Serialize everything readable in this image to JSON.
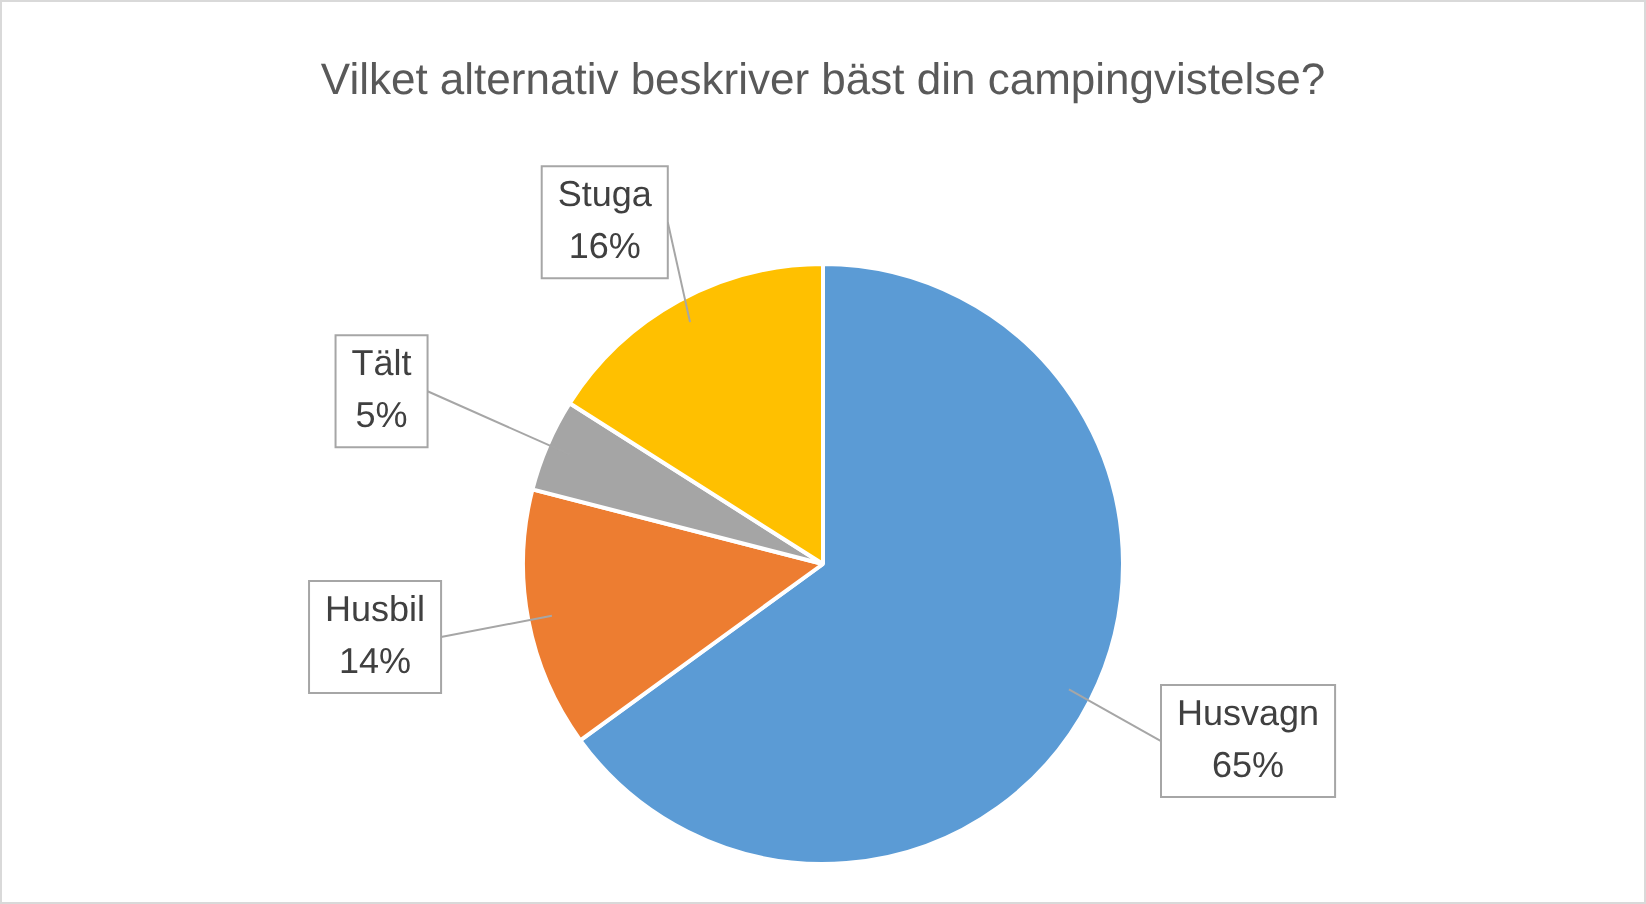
{
  "chart_data": {
    "type": "pie",
    "title": "Vilket alternativ beskriver bäst din campingvistelse?",
    "categories": [
      "Husvagn",
      "Husbil",
      "Tält",
      "Stuga"
    ],
    "values": [
      65,
      14,
      5,
      16
    ],
    "colors": [
      "#5b9bd5",
      "#ed7d31",
      "#a5a5a5",
      "#ffc000"
    ],
    "value_labels": [
      "65%",
      "14%",
      "5%",
      "16%"
    ],
    "legend": false
  }
}
